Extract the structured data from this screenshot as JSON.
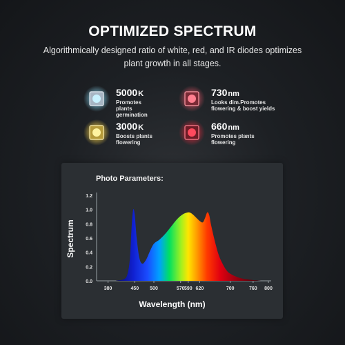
{
  "header": {
    "title": "OPTIMIZED SPECTRUM",
    "subtitle": "Algorithmically designed ratio of white, red, and IR diodes optimizes plant growth in all stages."
  },
  "diodes": [
    {
      "value": "5000",
      "unit": "K",
      "desc": "Promotes plants germination",
      "color": "#7fd8ff",
      "icon": "white-diode-chip-icon"
    },
    {
      "value": "730",
      "unit": "nm",
      "desc": "Looks dim.Promotes flowering & boost yields",
      "color": "#ff6b7a",
      "icon": "ir-diode-chip-icon"
    },
    {
      "value": "3000",
      "unit": "K",
      "desc": "Boosts plants flowering",
      "color": "#ffe27a",
      "icon": "warm-diode-chip-icon"
    },
    {
      "value": "660",
      "unit": "nm",
      "desc": "Promotes plants flowering",
      "color": "#ff3b4e",
      "icon": "red-diode-chip-icon"
    }
  ],
  "panel": {
    "title": "Photo Parameters:"
  },
  "chart_data": {
    "type": "area",
    "xlabel": "Wavelength (nm)",
    "ylabel": "Spectrum",
    "xlim": [
      350,
      800
    ],
    "ylim": [
      0,
      1.2
    ],
    "x_ticks": [
      380,
      450,
      500,
      570,
      590,
      620,
      700,
      760,
      800
    ],
    "y_ticks": [
      "0.0",
      "0.2",
      "0.4",
      "0.6",
      "0.8",
      "1.0",
      "1.2"
    ],
    "grid": false,
    "fill": "visible-spectrum-rainbow",
    "x": [
      400,
      420,
      430,
      437,
      442,
      446,
      450,
      455,
      462,
      470,
      480,
      490,
      500,
      515,
      530,
      545,
      560,
      575,
      590,
      600,
      610,
      620,
      628,
      634,
      640,
      645,
      650,
      660,
      670,
      680,
      690,
      700,
      720,
      745,
      780
    ],
    "values": [
      0.0,
      0.02,
      0.08,
      0.3,
      0.78,
      1.0,
      0.92,
      0.6,
      0.32,
      0.24,
      0.3,
      0.42,
      0.52,
      0.58,
      0.66,
      0.76,
      0.86,
      0.93,
      0.96,
      0.94,
      0.89,
      0.84,
      0.82,
      0.88,
      0.96,
      0.92,
      0.78,
      0.55,
      0.36,
      0.24,
      0.15,
      0.1,
      0.05,
      0.02,
      0.0
    ]
  }
}
